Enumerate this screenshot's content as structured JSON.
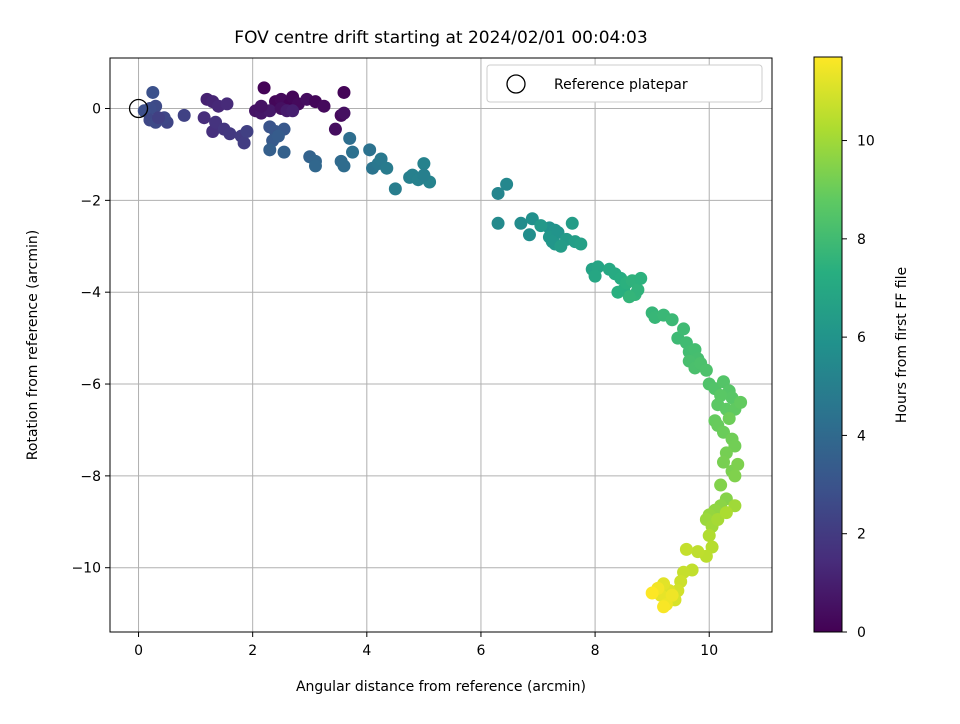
{
  "chart_data": {
    "type": "scatter",
    "title": "FOV centre drift starting at 2024/02/01 00:04:03",
    "xlabel": "Angular distance from reference (arcmin)",
    "ylabel": "Rotation from reference (arcmin)",
    "xlim": [
      -0.5,
      11.1
    ],
    "ylim": [
      -11.4,
      1.1
    ],
    "xticks": [
      "0",
      "2",
      "4",
      "6",
      "8",
      "10"
    ],
    "yticks": [
      "0",
      "−2",
      "−4",
      "−6",
      "−8",
      "−10"
    ],
    "grid": true,
    "colormap": "viridis",
    "legend": {
      "label": "Reference platepar",
      "placement": "top-right"
    },
    "reference_point": {
      "x": 0,
      "y": 0
    },
    "colorbar": {
      "label": "Hours from first FF file",
      "min": 0,
      "max": 11.7,
      "ticks": [
        "0",
        "2",
        "4",
        "6",
        "8",
        "10"
      ]
    },
    "points": [
      [
        2.2,
        0.45,
        0.1
      ],
      [
        2.4,
        0.15,
        0.2
      ],
      [
        2.5,
        0.2,
        0.3
      ],
      [
        2.65,
        0.1,
        0.1
      ],
      [
        2.7,
        0.25,
        0.2
      ],
      [
        2.8,
        0.1,
        0.3
      ],
      [
        2.95,
        0.2,
        0.4
      ],
      [
        3.1,
        0.15,
        0.2
      ],
      [
        3.25,
        0.05,
        0.3
      ],
      [
        3.45,
        -0.45,
        0.4
      ],
      [
        3.55,
        -0.15,
        0.3
      ],
      [
        3.6,
        0.35,
        0.1
      ],
      [
        3.6,
        -0.1,
        0.5
      ],
      [
        2.05,
        -0.05,
        0.6
      ],
      [
        2.15,
        -0.1,
        0.7
      ],
      [
        2.3,
        -0.05,
        0.8
      ],
      [
        2.5,
        0.0,
        0.5
      ],
      [
        2.6,
        -0.05,
        0.9
      ],
      [
        2.7,
        -0.05,
        1.0
      ],
      [
        2.15,
        0.05,
        0.6
      ],
      [
        1.2,
        0.2,
        1.1
      ],
      [
        1.3,
        0.15,
        1.2
      ],
      [
        1.4,
        0.05,
        1.3
      ],
      [
        1.55,
        0.1,
        1.4
      ],
      [
        1.15,
        -0.2,
        1.5
      ],
      [
        1.3,
        -0.5,
        1.6
      ],
      [
        1.35,
        -0.3,
        1.7
      ],
      [
        1.5,
        -0.45,
        1.8
      ],
      [
        1.6,
        -0.55,
        1.9
      ],
      [
        1.8,
        -0.6,
        2.0
      ],
      [
        1.85,
        -0.75,
        2.1
      ],
      [
        1.9,
        -0.5,
        2.2
      ],
      [
        0.8,
        -0.15,
        2.3
      ],
      [
        0.5,
        -0.3,
        2.4
      ],
      [
        0.45,
        -0.2,
        2.5
      ],
      [
        0.3,
        0.05,
        2.6
      ],
      [
        0.2,
        0.0,
        2.7
      ],
      [
        0.1,
        -0.05,
        2.8
      ],
      [
        0.25,
        0.35,
        2.9
      ],
      [
        0.2,
        -0.25,
        2.5
      ],
      [
        0.3,
        -0.3,
        2.6
      ],
      [
        0.35,
        -0.2,
        2.2
      ],
      [
        2.3,
        -0.4,
        3.0
      ],
      [
        2.4,
        -0.5,
        3.1
      ],
      [
        2.55,
        -0.45,
        3.2
      ],
      [
        2.35,
        -0.7,
        3.3
      ],
      [
        2.45,
        -0.6,
        3.4
      ],
      [
        2.3,
        -0.9,
        3.5
      ],
      [
        2.55,
        -0.95,
        3.6
      ],
      [
        3.0,
        -1.05,
        3.7
      ],
      [
        3.1,
        -1.15,
        3.8
      ],
      [
        3.1,
        -1.25,
        3.9
      ],
      [
        3.55,
        -1.15,
        4.0
      ],
      [
        3.6,
        -1.25,
        4.1
      ],
      [
        3.7,
        -0.65,
        4.2
      ],
      [
        3.75,
        -0.95,
        4.3
      ],
      [
        4.05,
        -0.9,
        4.4
      ],
      [
        4.1,
        -1.3,
        4.5
      ],
      [
        4.2,
        -1.2,
        4.6
      ],
      [
        4.25,
        -1.1,
        4.7
      ],
      [
        4.35,
        -1.3,
        4.8
      ],
      [
        4.5,
        -1.75,
        4.9
      ],
      [
        4.75,
        -1.5,
        5.0
      ],
      [
        4.8,
        -1.45,
        5.05
      ],
      [
        4.9,
        -1.55,
        5.1
      ],
      [
        5.0,
        -1.2,
        5.15
      ],
      [
        5.1,
        -1.6,
        5.2
      ],
      [
        5.0,
        -1.45,
        5.0
      ],
      [
        6.3,
        -1.85,
        5.3
      ],
      [
        6.45,
        -1.65,
        5.4
      ],
      [
        6.3,
        -2.5,
        5.5
      ],
      [
        6.7,
        -2.5,
        5.6
      ],
      [
        6.85,
        -2.75,
        5.7
      ],
      [
        6.9,
        -2.4,
        5.8
      ],
      [
        7.2,
        -2.6,
        5.9
      ],
      [
        7.3,
        -2.65,
        6.0
      ],
      [
        7.2,
        -2.8,
        6.1
      ],
      [
        7.3,
        -2.95,
        6.2
      ],
      [
        7.35,
        -2.7,
        6.0
      ],
      [
        7.25,
        -2.9,
        6.1
      ],
      [
        7.5,
        -2.85,
        6.3
      ],
      [
        7.6,
        -2.5,
        6.4
      ],
      [
        7.65,
        -2.9,
        6.5
      ],
      [
        7.75,
        -2.95,
        6.6
      ],
      [
        7.4,
        -3.0,
        6.4
      ],
      [
        7.05,
        -2.55,
        6.2
      ],
      [
        7.95,
        -3.5,
        6.7
      ],
      [
        8.05,
        -3.45,
        6.8
      ],
      [
        8.0,
        -3.65,
        6.9
      ],
      [
        8.25,
        -3.5,
        7.0
      ],
      [
        8.35,
        -3.6,
        7.1
      ],
      [
        8.45,
        -3.7,
        7.2
      ],
      [
        8.5,
        -3.95,
        7.3
      ],
      [
        8.55,
        -3.8,
        7.4
      ],
      [
        8.65,
        -3.75,
        7.5
      ],
      [
        8.7,
        -4.05,
        7.6
      ],
      [
        8.75,
        -3.95,
        7.55
      ],
      [
        8.6,
        -4.1,
        7.65
      ],
      [
        8.8,
        -3.7,
        7.45
      ],
      [
        8.4,
        -4.0,
        7.35
      ],
      [
        9.0,
        -4.45,
        7.7
      ],
      [
        9.05,
        -4.55,
        7.75
      ],
      [
        9.2,
        -4.5,
        7.8
      ],
      [
        9.35,
        -4.6,
        7.85
      ],
      [
        9.45,
        -5.0,
        7.9
      ],
      [
        9.55,
        -4.8,
        7.95
      ],
      [
        9.6,
        -5.1,
        8.0
      ],
      [
        9.65,
        -5.3,
        8.05
      ],
      [
        9.75,
        -5.25,
        8.1
      ],
      [
        9.8,
        -5.45,
        8.15
      ],
      [
        9.65,
        -5.5,
        8.2
      ],
      [
        9.75,
        -5.65,
        8.25
      ],
      [
        9.85,
        -5.55,
        8.3
      ],
      [
        9.95,
        -5.7,
        8.35
      ],
      [
        10.0,
        -6.0,
        8.4
      ],
      [
        10.1,
        -6.1,
        8.45
      ],
      [
        10.25,
        -5.95,
        8.5
      ],
      [
        10.35,
        -6.15,
        8.55
      ],
      [
        10.4,
        -6.3,
        8.6
      ],
      [
        10.2,
        -6.25,
        8.65
      ],
      [
        10.15,
        -6.45,
        8.7
      ],
      [
        10.3,
        -6.55,
        8.75
      ],
      [
        10.45,
        -6.55,
        8.8
      ],
      [
        10.55,
        -6.4,
        8.85
      ],
      [
        10.1,
        -6.8,
        8.9
      ],
      [
        10.15,
        -6.9,
        8.95
      ],
      [
        10.25,
        -7.05,
        9.0
      ],
      [
        10.35,
        -6.75,
        9.05
      ],
      [
        10.4,
        -7.2,
        9.1
      ],
      [
        10.45,
        -7.35,
        9.15
      ],
      [
        10.3,
        -7.5,
        9.2
      ],
      [
        10.25,
        -7.7,
        9.25
      ],
      [
        10.4,
        -7.9,
        9.3
      ],
      [
        10.5,
        -7.75,
        9.35
      ],
      [
        10.45,
        -8.0,
        9.4
      ],
      [
        10.2,
        -8.2,
        9.45
      ],
      [
        10.3,
        -8.5,
        9.5
      ],
      [
        10.2,
        -8.65,
        9.6
      ],
      [
        10.1,
        -8.75,
        9.7
      ],
      [
        10.0,
        -8.85,
        9.8
      ],
      [
        9.95,
        -8.95,
        9.9
      ],
      [
        10.05,
        -9.1,
        10.0
      ],
      [
        10.15,
        -8.95,
        10.1
      ],
      [
        10.45,
        -8.65,
        10.0
      ],
      [
        10.3,
        -8.8,
        10.2
      ],
      [
        10.0,
        -9.3,
        10.3
      ],
      [
        10.05,
        -9.55,
        10.4
      ],
      [
        9.95,
        -9.75,
        10.5
      ],
      [
        9.8,
        -9.65,
        10.55
      ],
      [
        9.7,
        -10.05,
        10.6
      ],
      [
        9.6,
        -9.6,
        10.65
      ],
      [
        9.55,
        -10.1,
        10.7
      ],
      [
        9.5,
        -10.3,
        10.8
      ],
      [
        9.45,
        -10.5,
        10.9
      ],
      [
        9.4,
        -10.7,
        11.0
      ],
      [
        9.3,
        -10.5,
        11.1
      ],
      [
        9.2,
        -10.35,
        11.2
      ],
      [
        9.15,
        -10.6,
        11.3
      ],
      [
        9.25,
        -10.8,
        11.4
      ],
      [
        9.1,
        -10.45,
        11.5
      ],
      [
        9.2,
        -10.85,
        11.6
      ],
      [
        9.0,
        -10.55,
        11.7
      ],
      [
        9.35,
        -10.6,
        11.45
      ]
    ]
  }
}
